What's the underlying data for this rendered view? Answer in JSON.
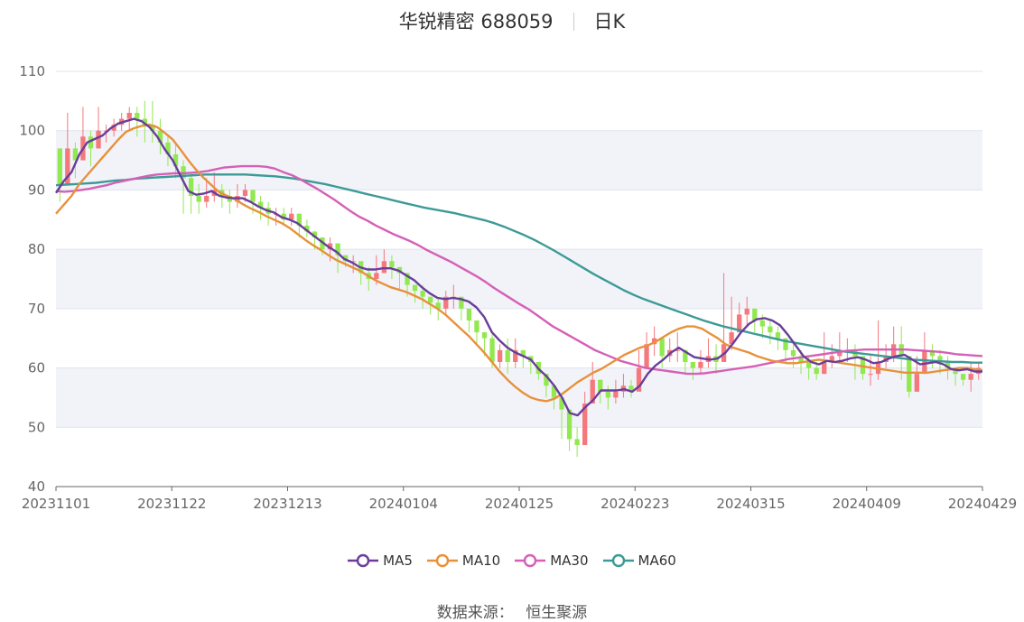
{
  "title": {
    "stock": "华锐精密 688059",
    "period": "日K"
  },
  "source": {
    "label": "数据来源：",
    "value": "恒生聚源"
  },
  "colors": {
    "up": "#f4787c",
    "down": "#91e84f",
    "ma5": "#6a3d9a",
    "ma10": "#e8913a",
    "ma30": "#d560b5",
    "ma60": "#3c9a96",
    "band": "#f1f3f9",
    "grid": "#dfe3ee"
  },
  "chart_data": {
    "type": "candlestick",
    "ylim": [
      40,
      110
    ],
    "yticks": [
      40,
      50,
      60,
      70,
      80,
      90,
      100,
      110
    ],
    "xtick_labels": [
      "20231101",
      "20231122",
      "20231213",
      "20240104",
      "20240125",
      "20240223",
      "20240315",
      "20240409",
      "20240429"
    ],
    "xtick_index": [
      0,
      15,
      30,
      45,
      60,
      75,
      90,
      105,
      120
    ],
    "legend": [
      "MA5",
      "MA10",
      "MA30",
      "MA60"
    ],
    "close": [
      91,
      97,
      95,
      99,
      97,
      100,
      100,
      101,
      102,
      103,
      102,
      101,
      100,
      98,
      96,
      94,
      92,
      89,
      88,
      89,
      90,
      89,
      88,
      89,
      90,
      88,
      87,
      86,
      86,
      85,
      86,
      84,
      83,
      82,
      80,
      81,
      79,
      78,
      78,
      76,
      75,
      76,
      78,
      77,
      76,
      74,
      73,
      72,
      71,
      70,
      72,
      72,
      70,
      68,
      66,
      65,
      61,
      63,
      61,
      63,
      62,
      61,
      59,
      57,
      55,
      53,
      48,
      47,
      54,
      58,
      56,
      55,
      56,
      57,
      56,
      60,
      64,
      65,
      62,
      63,
      63,
      61,
      60,
      61,
      62,
      61,
      64,
      66,
      69,
      70,
      68,
      67,
      66,
      65,
      63,
      62,
      61,
      60,
      59,
      61,
      62,
      63,
      63,
      62,
      59,
      59,
      61,
      62,
      64,
      62,
      56,
      59,
      63,
      62,
      61,
      60,
      59,
      58,
      59,
      60
    ],
    "high": [
      97,
      103,
      98,
      104,
      100,
      104,
      101,
      102,
      103,
      104,
      104,
      105,
      105,
      102,
      99,
      98,
      95,
      93,
      91,
      92,
      93,
      91,
      90,
      91,
      91,
      90,
      89,
      88,
      87,
      87,
      87,
      86,
      85,
      83,
      82,
      82,
      80,
      79,
      79,
      77,
      77,
      79,
      80,
      79,
      77,
      75,
      74,
      74,
      72,
      72,
      73,
      74,
      72,
      70,
      68,
      66,
      66,
      64,
      65,
      65,
      63,
      62,
      60,
      58,
      56,
      55,
      51,
      50,
      56,
      61,
      58,
      57,
      58,
      59,
      58,
      63,
      66,
      67,
      64,
      65,
      66,
      63,
      61,
      63,
      65,
      64,
      76,
      72,
      71,
      72,
      70,
      69,
      68,
      67,
      65,
      64,
      63,
      62,
      61,
      66,
      64,
      66,
      65,
      64,
      61,
      62,
      68,
      64,
      67,
      67,
      60,
      62,
      66,
      64,
      63,
      62,
      60,
      59,
      61,
      61
    ],
    "low": [
      88,
      93,
      92,
      96,
      94,
      97,
      98,
      99,
      100,
      100,
      99,
      98,
      98,
      96,
      94,
      92,
      86,
      86,
      86,
      87,
      88,
      87,
      86,
      87,
      88,
      86,
      85,
      84,
      84,
      84,
      84,
      82,
      82,
      80,
      79,
      78,
      76,
      77,
      76,
      74,
      73,
      74,
      76,
      75,
      73,
      72,
      71,
      70,
      69,
      68,
      69,
      70,
      68,
      66,
      64,
      62,
      60,
      60,
      59,
      60,
      60,
      59,
      58,
      55,
      53,
      48,
      46,
      45,
      48,
      55,
      54,
      53,
      54,
      55,
      55,
      57,
      60,
      62,
      60,
      61,
      61,
      59,
      58,
      59,
      60,
      59,
      62,
      63,
      66,
      67,
      66,
      65,
      64,
      63,
      61,
      60,
      59,
      58,
      58,
      59,
      60,
      61,
      61,
      58,
      58,
      57,
      58,
      60,
      61,
      58,
      55,
      56,
      59,
      60,
      59,
      58,
      57,
      57,
      56,
      58
    ],
    "ma5": [
      89.5,
      91.5,
      93.0,
      96.0,
      98.0,
      98.6,
      99.2,
      100.4,
      101.2,
      101.6,
      102.0,
      101.6,
      100.6,
      99.0,
      96.8,
      95.0,
      92.4,
      89.8,
      89.2,
      89.4,
      89.8,
      89.0,
      88.7,
      88.6,
      88.6,
      88.0,
      87.2,
      86.6,
      86.2,
      85.4,
      85.0,
      84.4,
      83.4,
      82.4,
      81.4,
      80.4,
      79.6,
      78.4,
      77.8,
      77.0,
      76.6,
      76.6,
      76.8,
      76.8,
      76.4,
      75.6,
      74.8,
      73.6,
      72.6,
      71.8,
      71.6,
      71.8,
      71.6,
      71.2,
      70.2,
      68.6,
      66.0,
      64.6,
      63.4,
      62.6,
      62.0,
      61.4,
      59.8,
      58.6,
      57.0,
      55.0,
      52.4,
      52.0,
      53.4,
      54.6,
      56.2,
      56.2,
      56.2,
      56.4,
      56.0,
      57.0,
      59.0,
      60.4,
      61.4,
      62.6,
      63.4,
      62.6,
      61.8,
      61.6,
      61.4,
      61.6,
      62.6,
      64.2,
      66.0,
      67.4,
      68.2,
      68.4,
      68.0,
      67.2,
      65.6,
      63.8,
      62.0,
      61.0,
      60.6,
      61.2,
      61.0,
      61.2,
      61.6,
      61.8,
      61.4,
      60.8,
      61.0,
      61.6,
      62.0,
      62.2,
      61.4,
      60.6,
      60.8,
      61.0,
      60.6,
      59.8,
      59.6,
      59.8,
      59.4,
      59.4
    ],
    "ma10": [
      86.0,
      87.5,
      89.0,
      91.0,
      92.5,
      94.0,
      95.5,
      97.0,
      98.5,
      99.8,
      100.4,
      100.8,
      101.0,
      100.6,
      99.6,
      98.5,
      96.8,
      95.0,
      93.4,
      92.0,
      90.8,
      89.6,
      89.0,
      88.4,
      87.6,
      86.9,
      86.3,
      85.6,
      85.0,
      84.4,
      83.6,
      82.6,
      81.6,
      80.7,
      79.9,
      79.0,
      78.2,
      77.6,
      77.0,
      76.4,
      75.6,
      74.8,
      74.2,
      73.6,
      73.2,
      72.8,
      72.2,
      71.6,
      70.8,
      70.0,
      69.0,
      67.8,
      66.6,
      65.4,
      64.0,
      62.6,
      61.0,
      59.4,
      58.0,
      56.8,
      55.8,
      55.0,
      54.6,
      54.4,
      54.8,
      55.6,
      56.6,
      57.6,
      58.4,
      59.2,
      59.8,
      60.6,
      61.4,
      62.2,
      62.8,
      63.4,
      63.8,
      64.4,
      65.2,
      66.0,
      66.6,
      67.0,
      67.0,
      66.6,
      65.8,
      65.0,
      64.0,
      63.4,
      63.0,
      62.6,
      62.0,
      61.6,
      61.2,
      61.0,
      60.8,
      60.8,
      61.0,
      61.2,
      61.4,
      61.2,
      61.0,
      60.8,
      60.6,
      60.4,
      60.2,
      60.0,
      59.8,
      59.6,
      59.4,
      59.2,
      59.2,
      59.2,
      59.2,
      59.4,
      59.6,
      59.8,
      60.0,
      60.0,
      59.8,
      59.6
    ],
    "ma30": [
      89.8,
      89.7,
      89.8,
      90.0,
      90.2,
      90.5,
      90.8,
      91.2,
      91.5,
      91.8,
      92.1,
      92.4,
      92.6,
      92.7,
      92.8,
      92.8,
      92.9,
      93.0,
      93.2,
      93.5,
      93.8,
      93.9,
      94.0,
      94.0,
      94.0,
      93.9,
      93.6,
      93.0,
      92.5,
      91.8,
      91.0,
      90.2,
      89.3,
      88.4,
      87.4,
      86.4,
      85.5,
      84.8,
      84.0,
      83.3,
      82.6,
      82.0,
      81.4,
      80.7,
      79.9,
      79.2,
      78.5,
      77.8,
      77.0,
      76.2,
      75.4,
      74.5,
      73.5,
      72.6,
      71.7,
      70.8,
      70.0,
      69.0,
      68.0,
      67.0,
      66.2,
      65.4,
      64.6,
      63.8,
      63.0,
      62.4,
      61.8,
      61.2,
      60.8,
      60.4,
      60.0,
      59.8,
      59.6,
      59.4,
      59.2,
      59.0,
      59.0,
      59.1,
      59.3,
      59.5,
      59.7,
      59.9,
      60.1,
      60.3,
      60.6,
      60.9,
      61.2,
      61.5,
      61.7,
      61.9,
      62.1,
      62.3,
      62.5,
      62.7,
      62.9,
      63.0,
      63.1,
      63.1,
      63.1,
      63.1,
      63.1,
      63.1,
      63.0,
      62.9,
      62.8,
      62.7,
      62.5,
      62.3,
      62.2,
      62.1,
      62.0
    ],
    "ma60": [
      90.8,
      90.9,
      91.0,
      91.1,
      91.2,
      91.4,
      91.6,
      91.7,
      91.9,
      92.0,
      92.1,
      92.2,
      92.3,
      92.4,
      92.5,
      92.6,
      92.6,
      92.6,
      92.6,
      92.6,
      92.5,
      92.4,
      92.3,
      92.1,
      91.9,
      91.6,
      91.3,
      91.0,
      90.6,
      90.2,
      89.8,
      89.4,
      89.0,
      88.6,
      88.2,
      87.8,
      87.4,
      87.0,
      86.7,
      86.4,
      86.1,
      85.7,
      85.3,
      84.9,
      84.4,
      83.8,
      83.1,
      82.4,
      81.6,
      80.7,
      79.8,
      78.8,
      77.8,
      76.8,
      75.8,
      74.9,
      74.0,
      73.1,
      72.3,
      71.6,
      71.0,
      70.4,
      69.8,
      69.2,
      68.6,
      68.0,
      67.5,
      67.0,
      66.6,
      66.2,
      65.8,
      65.4,
      65.0,
      64.6,
      64.3,
      64.0,
      63.7,
      63.4,
      63.1,
      62.8,
      62.6,
      62.4,
      62.2,
      62.0,
      61.8,
      61.6,
      61.4,
      61.3,
      61.2,
      61.1,
      61.0,
      61.0,
      60.9,
      60.9
    ]
  }
}
